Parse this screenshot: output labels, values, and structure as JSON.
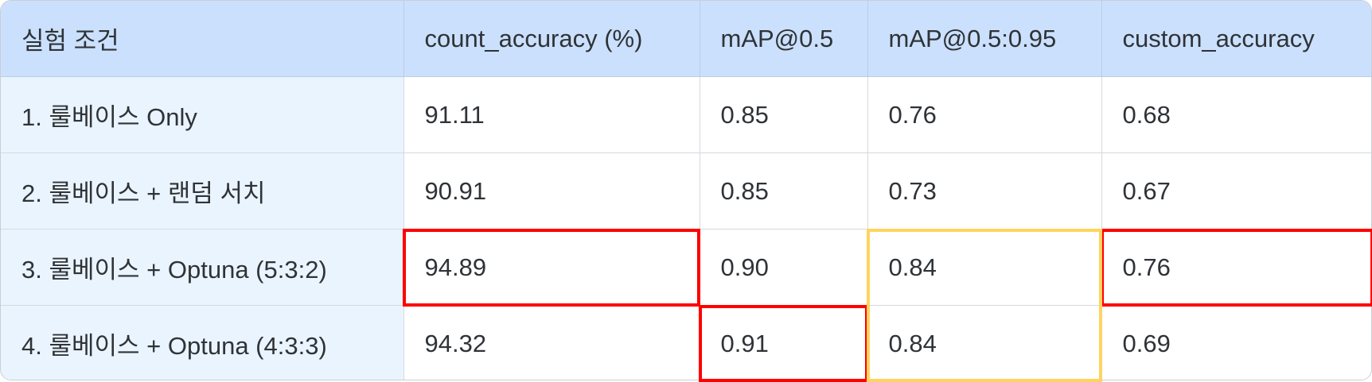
{
  "table": {
    "headers": [
      "실험 조건",
      "count_accuracy (%)",
      "mAP@0.5",
      "mAP@0.5:0.95",
      "custom_accuracy"
    ],
    "rows": [
      [
        "1. 룰베이스 Only",
        "91.11",
        "0.85",
        "0.76",
        "0.68"
      ],
      [
        "2. 룰베이스 + 랜덤 서치",
        "90.91",
        "0.85",
        "0.73",
        "0.67"
      ],
      [
        "3. 룰베이스 + Optuna (5:3:2)",
        "94.89",
        "0.90",
        "0.84",
        "0.76"
      ],
      [
        "4. 룰베이스 + Optuna (4:3:3)",
        "94.32",
        "0.91",
        "0.84",
        "0.69"
      ]
    ]
  },
  "colors": {
    "header_bg": "#cbe0fd",
    "condition_bg": "#eaf4fe",
    "highlight_red": "#ff0000",
    "highlight_yellow": "#ffd45e"
  },
  "highlights": [
    {
      "row": 2,
      "col": 1,
      "row_span": 1,
      "color": "#ff0000"
    },
    {
      "row": 2,
      "col": 4,
      "row_span": 1,
      "color": "#ff0000"
    },
    {
      "row": 3,
      "col": 2,
      "row_span": 1,
      "color": "#ff0000"
    },
    {
      "row": 2,
      "col": 3,
      "row_span": 2,
      "color": "#ffd45e"
    }
  ]
}
